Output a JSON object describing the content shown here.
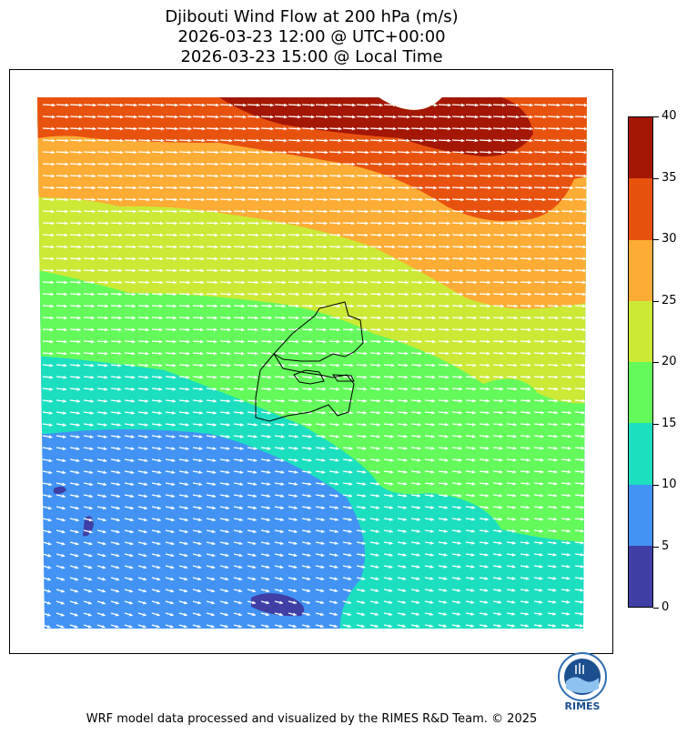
{
  "title": {
    "line1": "Djibouti Wind Flow at 200 hPa (m/s)",
    "line2": "2026-03-23 12:00 @ UTC+00:00",
    "line3": "2026-03-23 15:00 @ Local Time"
  },
  "colorbar": {
    "levels": [
      0,
      5,
      10,
      15,
      20,
      25,
      30,
      35,
      40
    ],
    "colors": [
      "#3f3fa6",
      "#4293f4",
      "#1cdfc0",
      "#64fa5c",
      "#cbe935",
      "#fdac35",
      "#e8520f",
      "#a31704"
    ],
    "labels": [
      "0",
      "5",
      "10",
      "15",
      "20",
      "25",
      "30",
      "35",
      "40"
    ]
  },
  "logo": {
    "text": "RIMES",
    "icon": "rimes-logo-icon"
  },
  "footer": "WRF model data processed and visualized by the RIMES R&D Team. © 2025"
}
